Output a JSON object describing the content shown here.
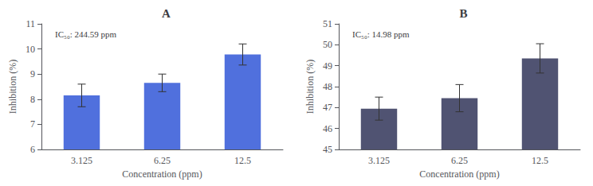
{
  "chart_data": [
    {
      "type": "bar",
      "title": "A",
      "categories": [
        "3.125",
        "6.25",
        "12.5"
      ],
      "values": [
        8.15,
        8.65,
        9.78
      ],
      "errors": [
        0.45,
        0.35,
        0.42
      ],
      "ylim": [
        6,
        11
      ],
      "yticks": [
        6,
        7,
        8,
        9,
        10,
        11
      ],
      "ylabel": "Inhibition (%)",
      "xlabel": "Concentration (ppm)",
      "annotation": "IC₅₀: 244.59 ppm",
      "grid": false
    },
    {
      "type": "bar",
      "title": "B",
      "categories": [
        "3.125",
        "6.25",
        "12.5"
      ],
      "values": [
        46.95,
        47.45,
        49.35
      ],
      "errors": [
        0.55,
        0.65,
        0.7
      ],
      "ylim": [
        45,
        51
      ],
      "yticks": [
        45,
        46,
        47,
        48,
        49,
        50,
        51
      ],
      "ylabel": "Inhibition (%)",
      "xlabel": "Concentration (ppm)",
      "annotation": "IC₅₀: 14.98 ppm",
      "grid": false
    }
  ]
}
